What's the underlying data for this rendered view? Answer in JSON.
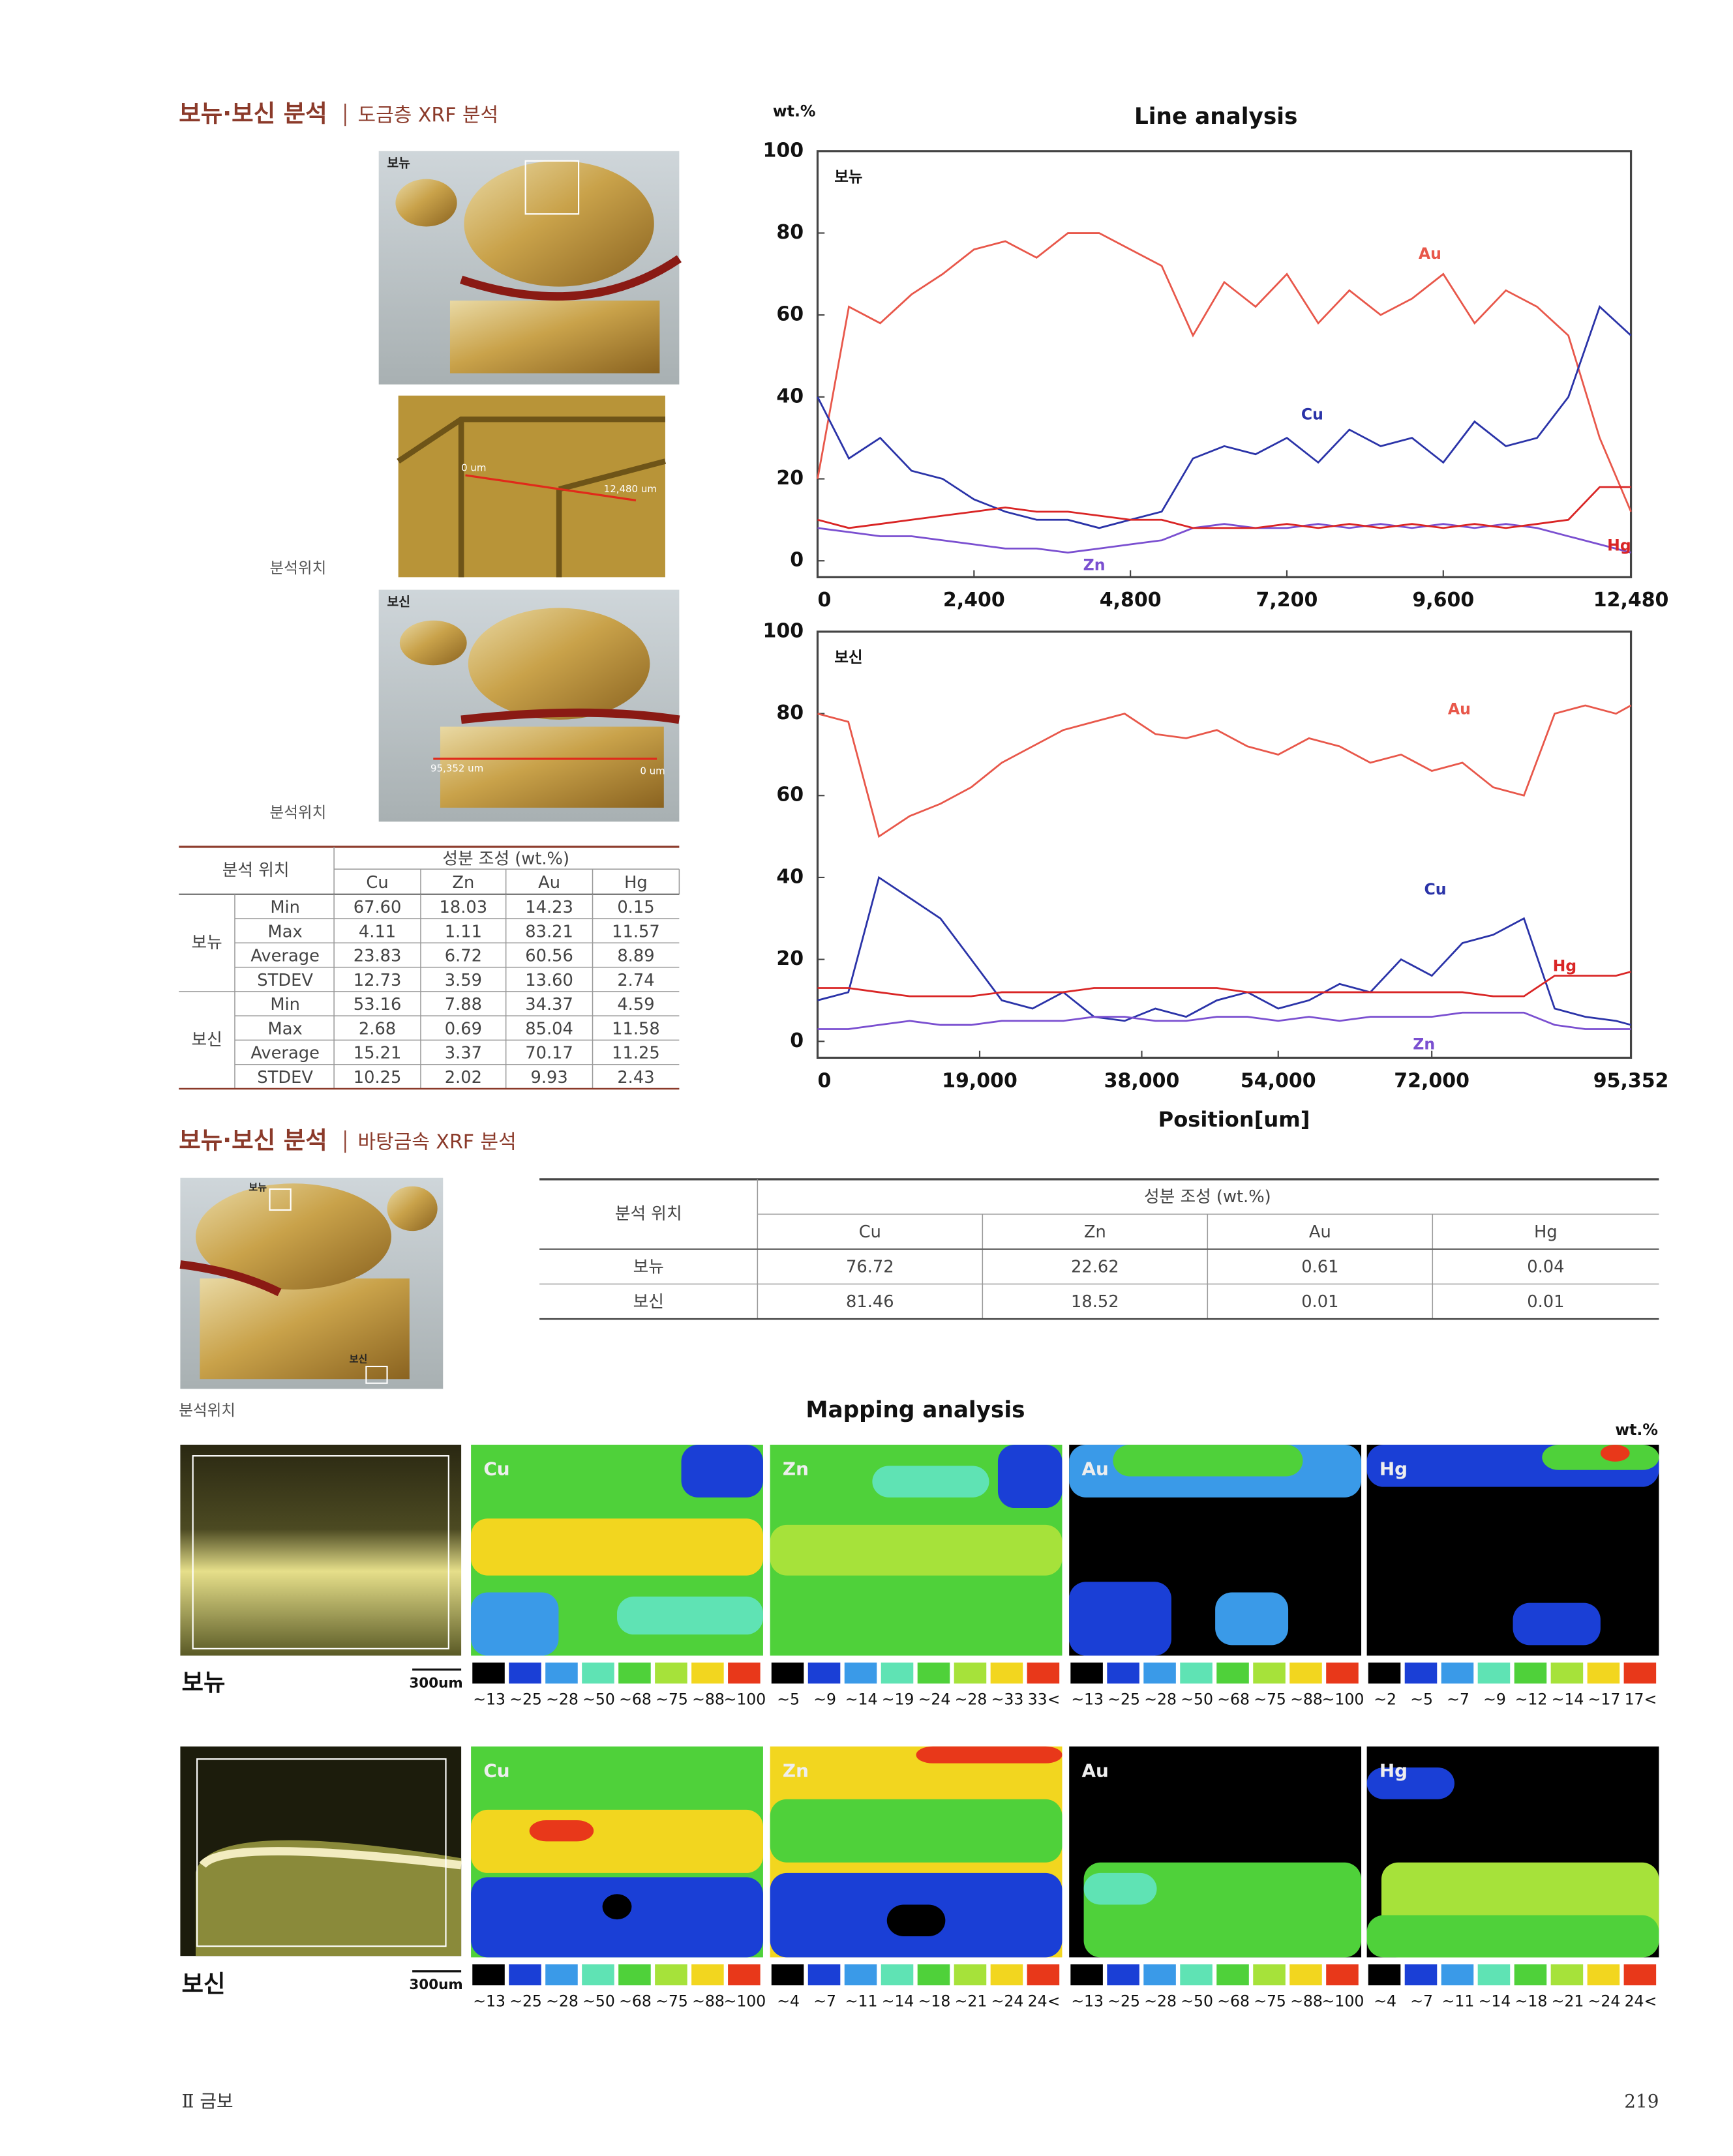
{
  "header": {
    "title": "보뉴·보신 분석",
    "subtitle": "도금층 XRF 분석"
  },
  "photos": {
    "labels": [
      "보뉴",
      "보신"
    ],
    "scale_top": [
      "0 um",
      "12,480 um"
    ],
    "scale_bottom": [
      "95,352 um",
      "0 um"
    ],
    "captions": [
      "분석위치",
      "분석위치"
    ]
  },
  "table1": {
    "header": [
      "분석 위치",
      "성분 조성 (wt.%)"
    ],
    "columns": [
      "Cu",
      "Zn",
      "Au",
      "Hg"
    ],
    "groups": [
      {
        "name": "보뉴",
        "rows": [
          [
            "Min",
            "67.60",
            "18.03",
            "14.23",
            "0.15"
          ],
          [
            "Max",
            "4.11",
            "1.11",
            "83.21",
            "11.57"
          ],
          [
            "Average",
            "23.83",
            "6.72",
            "60.56",
            "8.89"
          ],
          [
            "STDEV",
            "12.73",
            "3.59",
            "13.60",
            "2.74"
          ]
        ]
      },
      {
        "name": "보신",
        "rows": [
          [
            "Min",
            "53.16",
            "7.88",
            "34.37",
            "4.59"
          ],
          [
            "Max",
            "2.68",
            "0.69",
            "85.04",
            "11.58"
          ],
          [
            "Average",
            "15.21",
            "3.37",
            "70.17",
            "11.25"
          ],
          [
            "STDEV",
            "10.25",
            "2.02",
            "9.93",
            "2.43"
          ]
        ]
      }
    ]
  },
  "line_analysis": {
    "title": "Line analysis",
    "unit": "wt.%",
    "x_label": "Position[um]"
  },
  "chart_data": [
    {
      "type": "line",
      "title": "보뉴",
      "x": [
        0,
        480,
        960,
        1440,
        1920,
        2400,
        2880,
        3360,
        3840,
        4320,
        4800,
        5280,
        5760,
        6240,
        6720,
        7200,
        7680,
        8160,
        8640,
        9120,
        9600,
        10080,
        10560,
        11040,
        11520,
        12000,
        12480
      ],
      "xlim": [
        0,
        12480
      ],
      "xticks": [
        0,
        {
          "value": 2400,
          "label": "2,400"
        },
        {
          "value": 4800,
          "label": "4,800"
        },
        {
          "value": 7200,
          "label": "7,200"
        },
        {
          "value": 9600,
          "label": "9,600"
        },
        {
          "value": 12480,
          "label": "12,480"
        }
      ],
      "ylim": [
        -4,
        100
      ],
      "yticks": [
        0,
        20,
        40,
        60,
        80,
        100
      ],
      "series": [
        {
          "name": "Au",
          "color": "#e8574a",
          "values": [
            20,
            62,
            58,
            65,
            70,
            76,
            78,
            74,
            80,
            80,
            76,
            72,
            55,
            68,
            62,
            70,
            58,
            66,
            60,
            64,
            70,
            58,
            66,
            62,
            55,
            30,
            12
          ]
        },
        {
          "name": "Cu",
          "color": "#2a33a8",
          "values": [
            40,
            25,
            30,
            22,
            20,
            15,
            12,
            10,
            10,
            8,
            10,
            12,
            25,
            28,
            26,
            30,
            24,
            32,
            28,
            30,
            24,
            34,
            28,
            30,
            40,
            62,
            55
          ]
        },
        {
          "name": "Zn",
          "color": "#7a4fd0",
          "values": [
            8,
            7,
            6,
            6,
            5,
            4,
            3,
            3,
            2,
            3,
            4,
            5,
            8,
            9,
            8,
            8,
            9,
            8,
            9,
            8,
            9,
            8,
            9,
            8,
            6,
            4,
            2
          ]
        },
        {
          "name": "Hg",
          "color": "#d92525",
          "values": [
            10,
            8,
            9,
            10,
            11,
            12,
            13,
            12,
            12,
            11,
            10,
            10,
            8,
            8,
            8,
            9,
            8,
            9,
            8,
            9,
            8,
            9,
            8,
            9,
            10,
            18,
            18
          ]
        }
      ]
    },
    {
      "type": "line",
      "title": "보신",
      "x": [
        0,
        3600,
        7200,
        10800,
        14400,
        18000,
        21600,
        25200,
        28800,
        32400,
        36000,
        39600,
        43200,
        46800,
        50400,
        54000,
        57600,
        61200,
        64800,
        68400,
        72000,
        75600,
        79200,
        82800,
        86400,
        90000,
        93600,
        95352
      ],
      "xlim": [
        0,
        95352
      ],
      "xticks": [
        0,
        {
          "value": 19000,
          "label": "19,000"
        },
        {
          "value": 38000,
          "label": "38,000"
        },
        {
          "value": 54000,
          "label": "54,000"
        },
        {
          "value": 72000,
          "label": "72,000"
        },
        {
          "value": 95352,
          "label": "95,352"
        }
      ],
      "ylim": [
        -4,
        100
      ],
      "yticks": [
        0,
        20,
        40,
        60,
        80,
        100
      ],
      "series": [
        {
          "name": "Au",
          "color": "#e8574a",
          "values": [
            80,
            78,
            50,
            55,
            58,
            62,
            68,
            72,
            76,
            78,
            80,
            75,
            74,
            76,
            72,
            70,
            74,
            72,
            68,
            70,
            66,
            68,
            62,
            60,
            80,
            82,
            80,
            82
          ]
        },
        {
          "name": "Cu",
          "color": "#2a33a8",
          "values": [
            10,
            12,
            40,
            35,
            30,
            20,
            10,
            8,
            12,
            6,
            5,
            8,
            6,
            10,
            12,
            8,
            10,
            14,
            12,
            20,
            16,
            24,
            26,
            30,
            8,
            6,
            5,
            4
          ]
        },
        {
          "name": "Hg",
          "color": "#d92525",
          "values": [
            13,
            13,
            12,
            11,
            11,
            11,
            12,
            12,
            12,
            13,
            13,
            13,
            13,
            13,
            12,
            12,
            12,
            12,
            12,
            12,
            12,
            12,
            11,
            11,
            16,
            16,
            16,
            17
          ]
        },
        {
          "name": "Zn",
          "color": "#7a4fd0",
          "values": [
            3,
            3,
            4,
            5,
            4,
            4,
            5,
            5,
            5,
            6,
            6,
            5,
            5,
            6,
            6,
            5,
            6,
            5,
            6,
            6,
            6,
            7,
            7,
            7,
            4,
            3,
            3,
            3
          ]
        }
      ]
    }
  ],
  "section2": {
    "title": "보뉴·보신 분석",
    "subtitle": "바탕금속 XRF 분석",
    "photo_labels": [
      "보뉴",
      "보신"
    ],
    "caption": "분석위치"
  },
  "table2": {
    "header": [
      "분석 위치",
      "성분 조성 (wt.%)"
    ],
    "columns": [
      "Cu",
      "Zn",
      "Au",
      "Hg"
    ],
    "rows": [
      [
        "보뉴",
        "76.72",
        "22.62",
        "0.61",
        "0.04"
      ],
      [
        "보신",
        "81.46",
        "18.52",
        "0.01",
        "0.01"
      ]
    ]
  },
  "mapping": {
    "title": "Mapping analysis",
    "unit": "wt.%",
    "palette": [
      "#000000",
      "#1a3fd6",
      "#3a9ae8",
      "#5fe3b4",
      "#4fd13a",
      "#a6e23a",
      "#f2d61f",
      "#e8381a"
    ],
    "rows": [
      {
        "name": "보뉴",
        "scale": "300um",
        "maps": [
          {
            "element": "Cu",
            "legend": [
              "~13",
              "~25",
              "~28",
              "~50",
              "~68",
              "~75",
              "~88",
              "~100"
            ]
          },
          {
            "element": "Zn",
            "legend": [
              "~5",
              "~9",
              "~14",
              "~19",
              "~24",
              "~28",
              "~33",
              "33<"
            ]
          },
          {
            "element": "Au",
            "legend": [
              "~13",
              "~25",
              "~28",
              "~50",
              "~68",
              "~75",
              "~88",
              "~100"
            ]
          },
          {
            "element": "Hg",
            "legend": [
              "~2",
              "~5",
              "~7",
              "~9",
              "~12",
              "~14",
              "~17",
              "17<"
            ]
          }
        ]
      },
      {
        "name": "보신",
        "scale": "300um",
        "maps": [
          {
            "element": "Cu",
            "legend": [
              "~13",
              "~25",
              "~28",
              "~50",
              "~68",
              "~75",
              "~88",
              "~100"
            ]
          },
          {
            "element": "Zn",
            "legend": [
              "~4",
              "~7",
              "~11",
              "~14",
              "~18",
              "~21",
              "~24",
              "24<"
            ]
          },
          {
            "element": "Au",
            "legend": [
              "~13",
              "~25",
              "~28",
              "~50",
              "~68",
              "~75",
              "~88",
              "~100"
            ]
          },
          {
            "element": "Hg",
            "legend": [
              "~4",
              "~7",
              "~11",
              "~14",
              "~18",
              "~21",
              "~24",
              "24<"
            ]
          }
        ]
      }
    ]
  },
  "footer": {
    "section": "Ⅱ 금보",
    "page": "219"
  }
}
